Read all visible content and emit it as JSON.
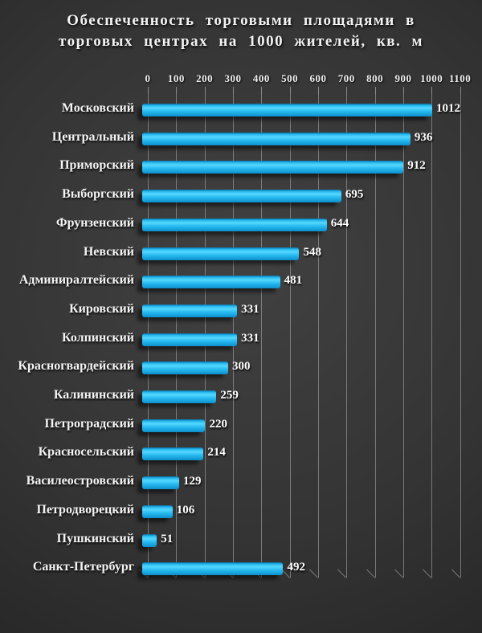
{
  "title": {
    "line1": "Обеспеченность торговыми площадями в",
    "line2": "торговых центрах на 1000 жителей, кв. м"
  },
  "chart_data": {
    "type": "bar",
    "orientation": "horizontal",
    "title": "Обеспеченность торговыми площадями в торговых центрах на 1000 жителей, кв. м",
    "categories": [
      "Московский",
      "Центральный",
      "Приморский",
      "Выборгский",
      "Фрунзенский",
      "Невский",
      "Админиралтейский",
      "Кировский",
      "Колпинский",
      "Красногвардейский",
      "Калининский",
      "Петроградский",
      "Красносельский",
      "Василеостровский",
      "Петродворецкий",
      "Пушкинский",
      "Санкт-Петербург"
    ],
    "values": [
      1012,
      936,
      912,
      695,
      644,
      548,
      481,
      331,
      331,
      300,
      259,
      220,
      214,
      129,
      106,
      51,
      492
    ],
    "value_labels": [
      "1012",
      "936",
      "912",
      "695",
      "644",
      "548",
      "481",
      "331",
      "331",
      "300",
      "259",
      "220",
      "214",
      "129",
      "106",
      "51",
      "492"
    ],
    "xlim": [
      0,
      1100
    ],
    "xticks": [
      0,
      100,
      200,
      300,
      400,
      500,
      600,
      700,
      800,
      900,
      1000,
      1100
    ],
    "grid": true,
    "legend": false
  },
  "colors": {
    "background_center": "#414141",
    "background_edge": "#1a1a1a",
    "bar_edge": "#0a6fa4",
    "bar_main": "#25b8ef",
    "bar_highlight": "#55d8ff",
    "bar_bottom": "#0d8fcc",
    "gridline": "#949494",
    "text": "#f4f4f4"
  }
}
